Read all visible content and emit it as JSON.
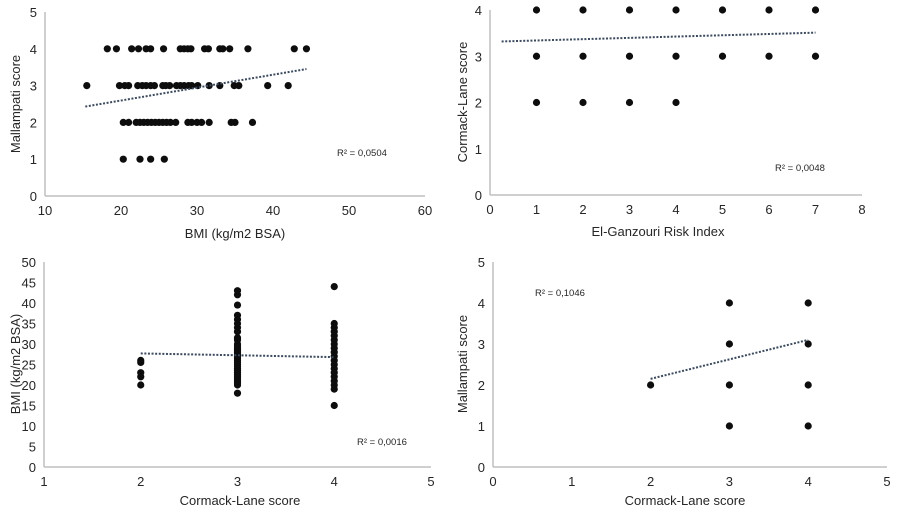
{
  "chart_data": [
    {
      "id": "bmi-vs-mallampati",
      "type": "scatter",
      "title": "",
      "xlabel": "BMI (kg/m2 BSA)",
      "ylabel": "Mallampati score",
      "xlim": [
        10,
        60
      ],
      "ylim": [
        0,
        5
      ],
      "xticks": [
        "10",
        "20",
        "30",
        "40",
        "50",
        "60"
      ],
      "yticks": [
        "0",
        "1",
        "2",
        "3",
        "4",
        "5"
      ],
      "grid": false,
      "legend": "none",
      "annotation": "R² = 0,0504",
      "annotation_position": "bottom-right",
      "trendline": {
        "type": "linear",
        "x": [
          15.3,
          44.4
        ],
        "y": [
          2.43,
          3.45
        ]
      },
      "points": [
        [
          18.2,
          4
        ],
        [
          19.4,
          4
        ],
        [
          21.4,
          4
        ],
        [
          22.3,
          4
        ],
        [
          23.3,
          4
        ],
        [
          23.9,
          4
        ],
        [
          25.6,
          4
        ],
        [
          27.8,
          4
        ],
        [
          28.3,
          4
        ],
        [
          28.8,
          4
        ],
        [
          29.2,
          4
        ],
        [
          31.0,
          4
        ],
        [
          31.5,
          4
        ],
        [
          33.0,
          4
        ],
        [
          33.4,
          4
        ],
        [
          34.3,
          4
        ],
        [
          36.7,
          4
        ],
        [
          42.8,
          4
        ],
        [
          44.4,
          4
        ],
        [
          15.5,
          3
        ],
        [
          19.8,
          3
        ],
        [
          20.5,
          3
        ],
        [
          21.0,
          3
        ],
        [
          22.2,
          3
        ],
        [
          22.8,
          3
        ],
        [
          23.3,
          3
        ],
        [
          23.9,
          3
        ],
        [
          24.4,
          3
        ],
        [
          25.5,
          3
        ],
        [
          25.9,
          3
        ],
        [
          26.4,
          3
        ],
        [
          27.3,
          3
        ],
        [
          27.8,
          3
        ],
        [
          28.3,
          3
        ],
        [
          28.9,
          3
        ],
        [
          29.3,
          3
        ],
        [
          30.1,
          3
        ],
        [
          31.6,
          3
        ],
        [
          33.0,
          3
        ],
        [
          34.9,
          3
        ],
        [
          35.5,
          3
        ],
        [
          39.3,
          3
        ],
        [
          42.0,
          3
        ],
        [
          20.3,
          2
        ],
        [
          21.0,
          2
        ],
        [
          22.0,
          2
        ],
        [
          22.5,
          2
        ],
        [
          23.0,
          2
        ],
        [
          23.5,
          2
        ],
        [
          24.0,
          2
        ],
        [
          24.5,
          2
        ],
        [
          25.0,
          2
        ],
        [
          25.5,
          2
        ],
        [
          26.0,
          2
        ],
        [
          26.5,
          2
        ],
        [
          27.2,
          2
        ],
        [
          28.8,
          2
        ],
        [
          29.3,
          2
        ],
        [
          30.0,
          2
        ],
        [
          30.6,
          2
        ],
        [
          31.6,
          2
        ],
        [
          34.5,
          2
        ],
        [
          35.0,
          2
        ],
        [
          37.3,
          2
        ],
        [
          20.3,
          1
        ],
        [
          22.5,
          1
        ],
        [
          23.9,
          1
        ],
        [
          25.7,
          1
        ]
      ]
    },
    {
      "id": "eri-vs-cormack-lane",
      "type": "scatter",
      "title": "",
      "xlabel": "El-Ganzouri Risk Index",
      "ylabel": "Cormack-Lane score",
      "xlim": [
        0,
        8
      ],
      "ylim": [
        0,
        4
      ],
      "xticks": [
        "0",
        "1",
        "2",
        "3",
        "4",
        "5",
        "6",
        "7",
        "8"
      ],
      "yticks": [
        "0",
        "1",
        "2",
        "3",
        "4"
      ],
      "grid": false,
      "legend": "none",
      "annotation": "R² = 0,0048",
      "annotation_position": "bottom-right",
      "trendline": {
        "type": "linear",
        "x": [
          0.25,
          7.0
        ],
        "y": [
          3.32,
          3.51
        ]
      },
      "points": [
        [
          1,
          4
        ],
        [
          2,
          4
        ],
        [
          3,
          4
        ],
        [
          4,
          4
        ],
        [
          5,
          4
        ],
        [
          6,
          4
        ],
        [
          7,
          4
        ],
        [
          1,
          3
        ],
        [
          2,
          3
        ],
        [
          3,
          3
        ],
        [
          4,
          3
        ],
        [
          5,
          3
        ],
        [
          6,
          3
        ],
        [
          7,
          3
        ],
        [
          1,
          2
        ],
        [
          2,
          2
        ],
        [
          3,
          2
        ],
        [
          4,
          2
        ]
      ]
    },
    {
      "id": "cormack-lane-vs-bmi",
      "type": "scatter",
      "title": "",
      "xlabel": "Cormack-Lane score",
      "ylabel": "BMI (kg/m2 BSA)",
      "xlim": [
        1,
        5
      ],
      "ylim": [
        0,
        50
      ],
      "xticks": [
        "1",
        "2",
        "3",
        "4",
        "5"
      ],
      "yticks": [
        "0",
        "5",
        "10",
        "15",
        "20",
        "25",
        "30",
        "35",
        "40",
        "45",
        "50"
      ],
      "grid": false,
      "legend": "none",
      "annotation": "R² = 0,0016",
      "annotation_position": "bottom-right",
      "trendline": {
        "type": "linear",
        "x": [
          2,
          4
        ],
        "y": [
          27.7,
          26.8
        ]
      },
      "points": [
        [
          2,
          20
        ],
        [
          2,
          22
        ],
        [
          2,
          23
        ],
        [
          2,
          25.5
        ],
        [
          2,
          26
        ],
        [
          3,
          18
        ],
        [
          3,
          20
        ],
        [
          3,
          20.5
        ],
        [
          3,
          21
        ],
        [
          3,
          21.5
        ],
        [
          3,
          22
        ],
        [
          3,
          22.5
        ],
        [
          3,
          23
        ],
        [
          3,
          23.5
        ],
        [
          3,
          24
        ],
        [
          3,
          24.5
        ],
        [
          3,
          25
        ],
        [
          3,
          25.5
        ],
        [
          3,
          26
        ],
        [
          3,
          26.5
        ],
        [
          3,
          27
        ],
        [
          3,
          27.5
        ],
        [
          3,
          28
        ],
        [
          3,
          28.5
        ],
        [
          3,
          29
        ],
        [
          3,
          29.5
        ],
        [
          3,
          30
        ],
        [
          3,
          31
        ],
        [
          3,
          31.5
        ],
        [
          3,
          33
        ],
        [
          3,
          34
        ],
        [
          3,
          35
        ],
        [
          3,
          36
        ],
        [
          3,
          37
        ],
        [
          3,
          39.5
        ],
        [
          3,
          42
        ],
        [
          3,
          43
        ],
        [
          4,
          15
        ],
        [
          4,
          19
        ],
        [
          4,
          20
        ],
        [
          4,
          21
        ],
        [
          4,
          22
        ],
        [
          4,
          23
        ],
        [
          4,
          24
        ],
        [
          4,
          25
        ],
        [
          4,
          26
        ],
        [
          4,
          27
        ],
        [
          4,
          28
        ],
        [
          4,
          29
        ],
        [
          4,
          30
        ],
        [
          4,
          31
        ],
        [
          4,
          32
        ],
        [
          4,
          33
        ],
        [
          4,
          34
        ],
        [
          4,
          35
        ],
        [
          4,
          44
        ]
      ]
    },
    {
      "id": "cormack-lane-vs-mallampati",
      "type": "scatter",
      "title": "",
      "xlabel": "Cormack-Lane score",
      "ylabel": "Mallampati score",
      "xlim": [
        0,
        5
      ],
      "ylim": [
        0,
        5
      ],
      "xticks": [
        "0",
        "1",
        "2",
        "3",
        "4",
        "5"
      ],
      "yticks": [
        "0",
        "1",
        "2",
        "3",
        "4",
        "5"
      ],
      "grid": false,
      "legend": "none",
      "annotation": "R² = 0,1046",
      "annotation_position": "top-left",
      "trendline": {
        "type": "linear",
        "x": [
          2,
          4
        ],
        "y": [
          2.15,
          3.1
        ]
      },
      "points": [
        [
          2,
          2
        ],
        [
          3,
          1
        ],
        [
          3,
          2
        ],
        [
          3,
          3
        ],
        [
          3,
          4
        ],
        [
          4,
          1
        ],
        [
          4,
          2
        ],
        [
          4,
          3
        ],
        [
          4,
          4
        ]
      ]
    }
  ]
}
